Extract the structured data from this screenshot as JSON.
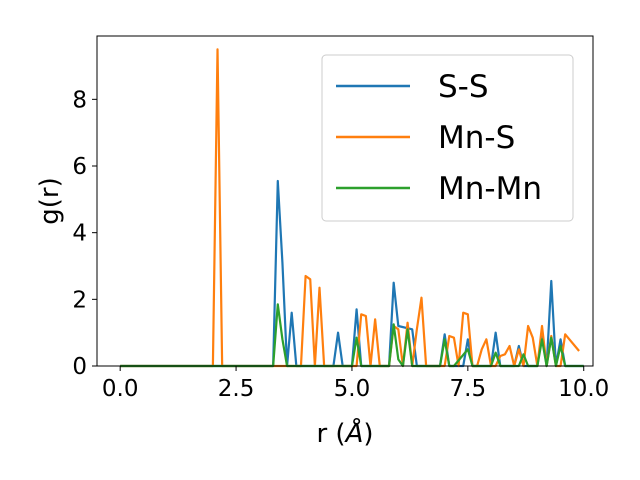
{
  "chart_data": {
    "type": "line",
    "xlabel": "r (",
    "xlabel_unit": "Å",
    "xlabel_close": ")",
    "ylabel": "g(r)",
    "xlim": [
      -0.5,
      10.2
    ],
    "ylim": [
      0,
      9.9
    ],
    "xticks": [
      0.0,
      2.5,
      5.0,
      7.5,
      10.0
    ],
    "xtick_labels": [
      "0.0",
      "2.5",
      "5.0",
      "7.5",
      "10.0"
    ],
    "yticks": [
      0,
      2,
      4,
      6,
      8
    ],
    "ytick_labels": [
      "0",
      "2",
      "4",
      "6",
      "8"
    ],
    "grid": false,
    "legend_position": "top-right",
    "series": [
      {
        "name": "S-S",
        "color": "#1f77b4",
        "x": [
          0.0,
          3.3,
          3.4,
          3.5,
          3.6,
          3.7,
          3.8,
          3.9,
          4.6,
          4.7,
          4.8,
          5.0,
          5.1,
          5.2,
          5.8,
          5.9,
          6.0,
          6.3,
          6.4,
          6.9,
          7.0,
          7.1,
          7.4,
          7.5,
          7.6,
          8.0,
          8.1,
          8.2,
          8.5,
          8.6,
          8.7,
          9.0,
          9.1,
          9.2,
          9.3,
          9.4,
          9.5,
          9.6,
          10.0
        ],
        "y": [
          0,
          0,
          5.55,
          3.1,
          0,
          1.6,
          0,
          0,
          0,
          1.0,
          0,
          0,
          1.7,
          0,
          0,
          2.5,
          1.2,
          1.1,
          0,
          0,
          0.95,
          0,
          0,
          0.8,
          0,
          0,
          1.0,
          0,
          0,
          0.6,
          0,
          0,
          1.0,
          0,
          2.55,
          0,
          0.8,
          0,
          0
        ]
      },
      {
        "name": "Mn-S",
        "color": "#ff7f0e",
        "x": [
          0.0,
          2.0,
          2.1,
          2.2,
          2.3,
          3.8,
          3.9,
          4.0,
          4.1,
          4.2,
          4.3,
          4.4,
          5.1,
          5.2,
          5.3,
          5.4,
          5.5,
          5.6,
          5.8,
          5.9,
          6.0,
          6.1,
          6.2,
          6.3,
          6.4,
          6.5,
          6.6,
          6.9,
          7.0,
          7.1,
          7.2,
          7.3,
          7.4,
          7.5,
          7.6,
          7.7,
          7.8,
          7.9,
          8.0,
          8.1,
          8.2,
          8.3,
          8.4,
          8.5,
          8.6,
          8.7,
          8.8,
          8.9,
          9.0,
          9.1,
          9.2,
          9.3,
          9.4,
          9.5,
          9.6,
          9.9
        ],
        "y": [
          0,
          0,
          9.5,
          0,
          0,
          0,
          0,
          2.7,
          2.6,
          0,
          2.35,
          0,
          0,
          1.55,
          1.5,
          0,
          1.4,
          0,
          0,
          1.2,
          1.1,
          0,
          1.3,
          0,
          1.1,
          2.05,
          0,
          0,
          0,
          0.9,
          0.85,
          0,
          1.6,
          1.55,
          0,
          0,
          0.5,
          0.8,
          0,
          0,
          0.3,
          0.35,
          0.6,
          0,
          0.5,
          0,
          1.2,
          0.85,
          0,
          1.2,
          0,
          0.9,
          0,
          0,
          0.95,
          0.45
        ]
      },
      {
        "name": "Mn-Mn",
        "color": "#2ca02c",
        "x": [
          0.0,
          3.3,
          3.4,
          3.5,
          3.6,
          5.0,
          5.1,
          5.2,
          5.8,
          5.9,
          6.0,
          6.1,
          6.2,
          6.3,
          6.9,
          7.0,
          7.1,
          7.2,
          7.5,
          7.6,
          7.7,
          8.0,
          8.1,
          8.2,
          8.6,
          8.7,
          8.8,
          9.0,
          9.1,
          9.2,
          9.3,
          9.4,
          9.5,
          9.6,
          10.0
        ],
        "y": [
          0,
          0,
          1.85,
          0.8,
          0,
          0,
          0.85,
          0,
          0,
          1.25,
          0.2,
          0,
          1.1,
          0,
          0,
          0.8,
          0,
          0,
          0.5,
          0,
          0,
          0,
          0.4,
          0,
          0,
          0.35,
          0,
          0,
          0.8,
          0,
          0.85,
          0,
          0.6,
          0,
          0
        ]
      }
    ]
  }
}
